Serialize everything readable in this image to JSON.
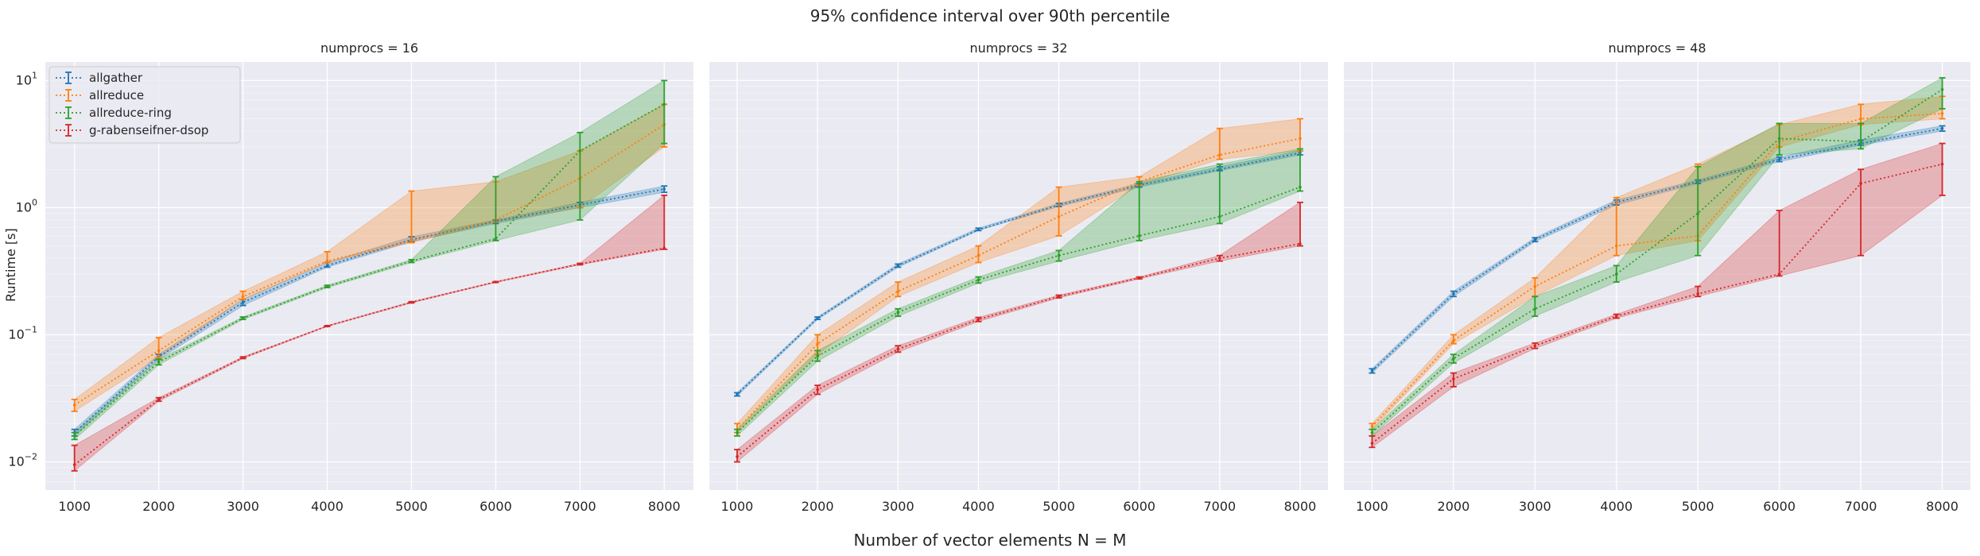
{
  "figure": {
    "title": "95% confidence interval over 90th percentile",
    "xlabel": "Number of vector elements N = M",
    "ylabel": "Runtime [s]"
  },
  "chart_data": {
    "type": "line",
    "x": [
      1000,
      2000,
      3000,
      4000,
      5000,
      6000,
      7000,
      8000
    ],
    "xticks": [
      "1000",
      "2000",
      "3000",
      "4000",
      "5000",
      "6000",
      "7000",
      "8000"
    ],
    "yscale": "log",
    "ylim": [
      0.006,
      14
    ],
    "yticks": [
      {
        "value": 0.01,
        "base": "10",
        "exp": "−2"
      },
      {
        "value": 0.1,
        "base": "10",
        "exp": "−1"
      },
      {
        "value": 1,
        "base": "10",
        "exp": "0"
      },
      {
        "value": 10,
        "base": "10",
        "exp": "1"
      }
    ],
    "grid": true,
    "legend_placement": "top-left",
    "series_styles": [
      {
        "name": "allgather",
        "color": "#1f77b4"
      },
      {
        "name": "allreduce",
        "color": "#ff7f0e"
      },
      {
        "name": "allreduce-ring",
        "color": "#2ca02c"
      },
      {
        "name": "g-rabenseifner-dsop",
        "color": "#d62728"
      }
    ],
    "panels": [
      {
        "title": "numprocs = 16",
        "series": [
          {
            "name": "allgather",
            "values": [
              0.017,
              0.067,
              0.18,
              0.35,
              0.56,
              0.78,
              1.05,
              1.4
            ],
            "low": [
              0.016,
              0.064,
              0.17,
              0.34,
              0.54,
              0.75,
              1.0,
              1.32
            ],
            "high": [
              0.018,
              0.07,
              0.19,
              0.37,
              0.59,
              0.8,
              1.1,
              1.48
            ]
          },
          {
            "name": "allreduce",
            "values": [
              0.028,
              0.075,
              0.2,
              0.38,
              0.55,
              0.8,
              1.7,
              4.5
            ],
            "low": [
              0.025,
              0.066,
              0.19,
              0.37,
              0.53,
              0.77,
              1.0,
              3.0
            ],
            "high": [
              0.031,
              0.095,
              0.22,
              0.45,
              1.35,
              1.6,
              2.8,
              6.5
            ]
          },
          {
            "name": "allreduce-ring",
            "values": [
              0.016,
              0.061,
              0.135,
              0.24,
              0.38,
              0.57,
              2.8,
              6.5
            ],
            "low": [
              0.015,
              0.058,
              0.132,
              0.235,
              0.37,
              0.55,
              0.8,
              3.2
            ],
            "high": [
              0.017,
              0.064,
              0.138,
              0.245,
              0.39,
              1.75,
              3.9,
              10.0
            ]
          },
          {
            "name": "g-rabenseifner-dsop",
            "values": [
              0.0095,
              0.031,
              0.066,
              0.117,
              0.18,
              0.26,
              0.36,
              0.48
            ],
            "low": [
              0.0085,
              0.03,
              0.065,
              0.116,
              0.178,
              0.258,
              0.355,
              0.47
            ],
            "high": [
              0.0135,
              0.032,
              0.067,
              0.118,
              0.182,
              0.262,
              0.365,
              1.25
            ]
          }
        ]
      },
      {
        "title": "numprocs = 32",
        "series": [
          {
            "name": "allgather",
            "values": [
              0.034,
              0.135,
              0.35,
              0.67,
              1.05,
              1.5,
              2.0,
              2.7
            ],
            "low": [
              0.033,
              0.132,
              0.34,
              0.66,
              1.02,
              1.45,
              1.95,
              2.6
            ],
            "high": [
              0.035,
              0.138,
              0.36,
              0.69,
              1.08,
              1.55,
              2.1,
              2.8
            ]
          },
          {
            "name": "allreduce",
            "values": [
              0.018,
              0.085,
              0.22,
              0.42,
              0.85,
              1.6,
              2.6,
              3.5
            ],
            "low": [
              0.017,
              0.07,
              0.2,
              0.37,
              0.6,
              1.5,
              2.4,
              2.8
            ],
            "high": [
              0.02,
              0.1,
              0.26,
              0.5,
              1.45,
              1.75,
              4.2,
              5.0
            ]
          },
          {
            "name": "allreduce-ring",
            "values": [
              0.017,
              0.068,
              0.15,
              0.27,
              0.42,
              0.6,
              0.85,
              1.45
            ],
            "low": [
              0.016,
              0.062,
              0.14,
              0.255,
              0.38,
              0.55,
              0.75,
              1.35
            ],
            "high": [
              0.018,
              0.075,
              0.16,
              0.285,
              0.46,
              1.6,
              2.2,
              2.9
            ]
          },
          {
            "name": "g-rabenseifner-dsop",
            "values": [
              0.011,
              0.037,
              0.077,
              0.132,
              0.2,
              0.28,
              0.4,
              0.52
            ],
            "low": [
              0.01,
              0.034,
              0.073,
              0.127,
              0.195,
              0.275,
              0.38,
              0.5
            ],
            "high": [
              0.0125,
              0.04,
              0.082,
              0.137,
              0.205,
              0.285,
              0.42,
              1.1
            ]
          }
        ]
      },
      {
        "title": "numprocs = 48",
        "series": [
          {
            "name": "allgather",
            "values": [
              0.052,
              0.21,
              0.56,
              1.1,
              1.6,
              2.4,
              3.2,
              4.2
            ],
            "low": [
              0.05,
              0.2,
              0.54,
              1.05,
              1.55,
              2.3,
              3.1,
              4.0
            ],
            "high": [
              0.054,
              0.22,
              0.58,
              1.15,
              1.65,
              2.5,
              3.4,
              4.4
            ]
          },
          {
            "name": "allreduce",
            "values": [
              0.019,
              0.09,
              0.24,
              0.5,
              0.6,
              3.3,
              5.0,
              5.5
            ],
            "low": [
              0.018,
              0.085,
              0.2,
              0.42,
              0.55,
              3.0,
              4.5,
              5.0
            ],
            "high": [
              0.02,
              0.1,
              0.28,
              1.2,
              2.2,
              4.5,
              6.5,
              7.5
            ]
          },
          {
            "name": "allreduce-ring",
            "values": [
              0.017,
              0.065,
              0.16,
              0.3,
              0.9,
              3.5,
              3.3,
              8.5
            ],
            "low": [
              0.016,
              0.06,
              0.14,
              0.26,
              0.42,
              2.6,
              2.9,
              6.0
            ],
            "high": [
              0.018,
              0.07,
              0.2,
              0.35,
              2.1,
              4.6,
              4.6,
              10.5
            ]
          },
          {
            "name": "g-rabenseifner-dsop",
            "values": [
              0.014,
              0.045,
              0.082,
              0.14,
              0.21,
              0.3,
              1.55,
              2.2
            ],
            "low": [
              0.013,
              0.039,
              0.078,
              0.135,
              0.2,
              0.29,
              0.42,
              1.25
            ],
            "high": [
              0.016,
              0.05,
              0.086,
              0.145,
              0.24,
              0.95,
              2.0,
              3.2
            ]
          }
        ]
      }
    ]
  }
}
